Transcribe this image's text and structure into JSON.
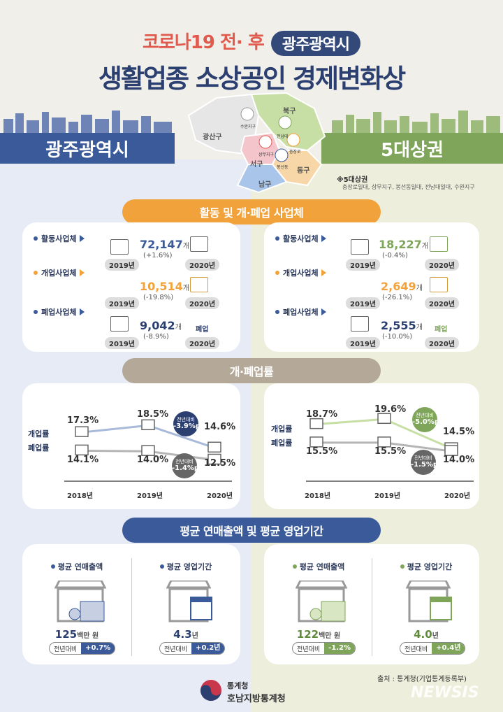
{
  "header": {
    "line1": "코로나19 전· 후",
    "pill": "광주광역시",
    "line2": "생활업종 소상공인 경제변화상"
  },
  "bands": {
    "left": "광주광역시",
    "right": "5대상권"
  },
  "map": {
    "districts": [
      "광산구",
      "북구",
      "서구",
      "동구",
      "남구"
    ],
    "spots": [
      "수완지구",
      "전남대",
      "상무지구",
      "충장로",
      "봉선동"
    ]
  },
  "note": {
    "title": "※5대상권",
    "text": "충장로일대, 상무지구, 봉선동일대, 전남대일대, 수완지구"
  },
  "sections": {
    "s1": "활동 및 개·폐업 사업체",
    "s2": "개·폐업률",
    "s3": "평균 연매출액 및 평균 영업기간"
  },
  "biz": {
    "labels": {
      "active": "활동사업체",
      "open": "개업사업체",
      "close": "폐업사업체"
    },
    "y2019": "2019년",
    "y2020": "2020년",
    "tag_close": "폐업",
    "left": {
      "active": {
        "val": "72,147",
        "unit": "개",
        "chg": "(+1.6%)"
      },
      "open": {
        "val": "10,514",
        "unit": "개",
        "chg": "(-19.8%)"
      },
      "close": {
        "val": "9,042",
        "unit": "개",
        "chg": "(-8.9%)"
      }
    },
    "right": {
      "active": {
        "val": "18,227",
        "unit": "개",
        "chg": "(-0.4%)"
      },
      "open": {
        "val": "2,649",
        "unit": "개",
        "chg": "(-26.1%)"
      },
      "close": {
        "val": "2,555",
        "unit": "개",
        "chg": "(-10.0%)"
      }
    }
  },
  "rates": {
    "open_label": "개업률",
    "close_label": "폐업률",
    "bubble_title": "전년대비",
    "x": [
      "2018년",
      "2019년",
      "2020년"
    ],
    "left": {
      "open": [
        "17.3%",
        "18.5%",
        "14.6%"
      ],
      "close": [
        "14.1%",
        "14.0%",
        "12.5%"
      ],
      "open_chg": "-3.9%p",
      "close_chg": "-1.4%p"
    },
    "right": {
      "open": [
        "18.7%",
        "19.6%",
        "14.5%"
      ],
      "close": [
        "15.5%",
        "15.5%",
        "14.0%"
      ],
      "open_chg": "-5.0%p",
      "close_chg": "-1.5%p"
    }
  },
  "chart_data": [
    {
      "type": "line",
      "x": [
        "2018",
        "2019",
        "2020"
      ],
      "series": [
        {
          "name": "개업률",
          "values": [
            17.3,
            18.5,
            14.6
          ]
        },
        {
          "name": "폐업률",
          "values": [
            14.1,
            14.0,
            12.5
          ]
        }
      ]
    },
    {
      "type": "line",
      "x": [
        "2018",
        "2019",
        "2020"
      ],
      "series": [
        {
          "name": "개업률",
          "values": [
            18.7,
            19.6,
            14.5
          ]
        },
        {
          "name": "폐업률",
          "values": [
            15.5,
            15.5,
            14.0
          ]
        }
      ]
    }
  ],
  "sales": {
    "rev_label": "평균 연매출액",
    "period_label": "평균 영업기간",
    "cmp_label": "전년대비",
    "left": {
      "rev": "125",
      "rev_unit": "백만 원",
      "rev_chg": "+0.7%",
      "period": "4.3",
      "period_unit": "년",
      "period_chg": "+0.2년"
    },
    "right": {
      "rev": "122",
      "rev_unit": "백만 원",
      "rev_chg": "-1.2%",
      "period": "4.0",
      "period_unit": "년",
      "period_chg": "+0.4년"
    }
  },
  "footer": {
    "source": "출처 : 통계청(기업통계등록부)",
    "org1": "통계청",
    "org2": "호남지방통계청",
    "watermark": "NEWSIS"
  },
  "colors": {
    "navy": "#2b3f70",
    "orange": "#f2a23a",
    "green": "#7fa55a",
    "red": "#e15a4e"
  }
}
